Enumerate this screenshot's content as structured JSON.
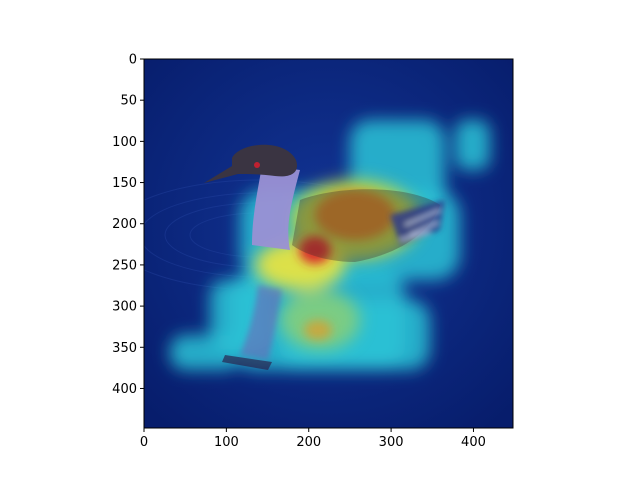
{
  "figure": {
    "description_type": "heatmap overlay on grebe photo",
    "colormap": "jet"
  },
  "axes": {
    "x_ticks": [
      "0",
      "100",
      "200",
      "300",
      "400"
    ],
    "y_ticks": [
      "0",
      "50",
      "100",
      "150",
      "200",
      "250",
      "300",
      "350",
      "400"
    ],
    "x_tick_values": [
      0,
      100,
      200,
      300,
      400
    ],
    "y_tick_values": [
      0,
      50,
      100,
      150,
      200,
      250,
      300,
      350,
      400
    ],
    "xlim": [
      0,
      448
    ],
    "ylim": [
      448,
      0
    ]
  },
  "colors": {
    "background_blue": "#0b2a86",
    "deep_blue": "#082070",
    "cyan": "#2cc8d8",
    "yellow": "#e6d23a",
    "red": "#d8262a",
    "bird_dark": "#3a3442",
    "bird_light": "#8e86c8"
  }
}
